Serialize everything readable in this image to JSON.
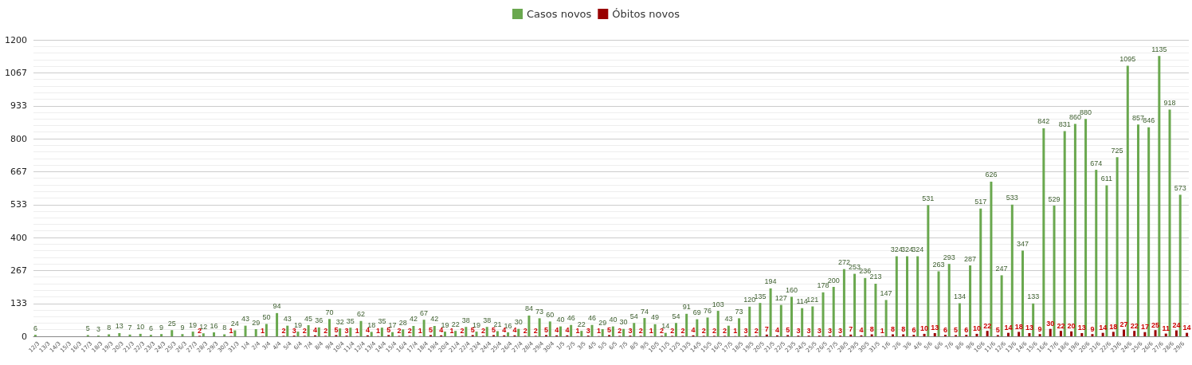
{
  "chart_data": {
    "type": "bar",
    "categories": [
      "12/3",
      "13/3",
      "14/3",
      "15/3",
      "16/3",
      "17/3",
      "18/3",
      "19/3",
      "20/3",
      "21/3",
      "22/3",
      "23/3",
      "24/3",
      "25/3",
      "26/3",
      "27/3",
      "28/3",
      "29/3",
      "30/3",
      "31/3",
      "1/4",
      "2/4",
      "3/4",
      "4/4",
      "5/4",
      "6/4",
      "7/4",
      "8/4",
      "9/4",
      "10/4",
      "11/4",
      "12/4",
      "13/4",
      "14/4",
      "15/4",
      "16/4",
      "17/4",
      "18/4",
      "19/4",
      "20/4",
      "21/4",
      "22/4",
      "23/4",
      "24/4",
      "25/4",
      "26/4",
      "27/4",
      "28/4",
      "29/4",
      "30/4",
      "1/5",
      "2/5",
      "3/5",
      "4/5",
      "5/5",
      "6/5",
      "7/5",
      "8/5",
      "9/5",
      "10/5",
      "11/5",
      "12/5",
      "13/5",
      "14/5",
      "15/5",
      "16/5",
      "17/5",
      "18/5",
      "19/5",
      "20/5",
      "21/5",
      "22/5",
      "23/5",
      "24/5",
      "25/5",
      "26/5",
      "27/5",
      "28/5",
      "29/5",
      "30/5",
      "31/5",
      "1/6",
      "2/6",
      "3/6",
      "4/6",
      "5/6",
      "6/6",
      "7/6",
      "8/6",
      "9/6",
      "10/6",
      "11/6",
      "12/6",
      "13/6",
      "14/6",
      "15/6",
      "16/6",
      "17/6",
      "18/6",
      "19/6",
      "20/6",
      "21/6",
      "22/6",
      "23/6",
      "24/6",
      "25/6",
      "26/6",
      "27/6",
      "28/6",
      "29/6"
    ],
    "series": [
      {
        "name": "Casos novos",
        "color": "#6aa84f",
        "values": [
          6,
          null,
          null,
          null,
          null,
          5,
          3,
          8,
          13,
          7,
          10,
          6,
          9,
          25,
          9,
          19,
          12,
          16,
          8,
          24,
          43,
          29,
          50,
          94,
          43,
          19,
          45,
          36,
          70,
          32,
          35,
          62,
          18,
          35,
          17,
          28,
          42,
          67,
          42,
          19,
          22,
          38,
          19,
          38,
          21,
          16,
          30,
          84,
          73,
          60,
          40,
          46,
          22,
          46,
          29,
          40,
          30,
          54,
          74,
          49,
          14,
          54,
          91,
          69,
          76,
          103,
          43,
          73,
          120,
          135,
          194,
          127,
          160,
          114,
          121,
          178,
          200,
          272,
          253,
          236,
          213,
          147,
          324,
          324,
          324,
          531,
          263,
          293,
          134,
          287,
          517,
          626,
          247,
          533,
          347,
          133,
          842,
          529,
          831,
          860,
          880,
          674,
          611,
          725,
          1095,
          857,
          846,
          1135,
          918,
          573
        ]
      },
      {
        "name": "Óbitos novos",
        "color": "#990000",
        "values": [
          null,
          null,
          null,
          null,
          null,
          null,
          null,
          null,
          null,
          null,
          null,
          null,
          null,
          null,
          null,
          2,
          null,
          null,
          1,
          null,
          null,
          1,
          null,
          2,
          3,
          2,
          4,
          2,
          5,
          3,
          1,
          4,
          1,
          5,
          2,
          2,
          1,
          5,
          4,
          1,
          2,
          5,
          2,
          5,
          4,
          4,
          2,
          2,
          5,
          4,
          4,
          1,
          3,
          1,
          5,
          2,
          3,
          2,
          1,
          2,
          2,
          2,
          4,
          2,
          2,
          2,
          1,
          3,
          2,
          7,
          4,
          5,
          3,
          3,
          3,
          3,
          3,
          7,
          4,
          8,
          1,
          8,
          8,
          6,
          10,
          13,
          6,
          5,
          6,
          10,
          22,
          5,
          14,
          18,
          13,
          9,
          30,
          22,
          20,
          13,
          9,
          14,
          18,
          27,
          22,
          17,
          25,
          11,
          24,
          14
        ]
      }
    ],
    "ylim": [
      0,
      1200
    ],
    "yticks": [
      0,
      133,
      267,
      400,
      533,
      667,
      800,
      933,
      1067,
      1200
    ],
    "grid": true,
    "legend": "top",
    "data_labels": true
  }
}
